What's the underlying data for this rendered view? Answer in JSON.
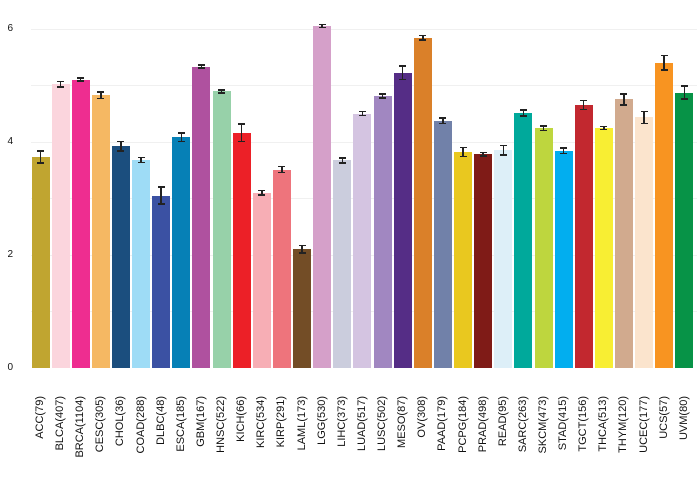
{
  "chart_data": {
    "type": "bar",
    "title": "",
    "xlabel": "",
    "ylabel": "",
    "ylim": [
      0,
      6
    ],
    "yticks": [
      0,
      2,
      4,
      6
    ],
    "y_tick_labels": [
      "0",
      "2",
      "4",
      "6"
    ],
    "gridline_values": [
      1,
      2,
      3,
      4,
      5,
      6
    ],
    "grid_on": true,
    "legend": "none",
    "grid_color": "#f0f0f0",
    "error_bar_color": "#222222",
    "background_color": "#ffffff",
    "categories": [
      "ACC(79)",
      "BLCA(407)",
      "BRCA(1104)",
      "CESC(305)",
      "CHOL(36)",
      "COAD(288)",
      "DLBC(48)",
      "ESCA(185)",
      "GBM(167)",
      "HNSC(522)",
      "KICH(66)",
      "KIRC(534)",
      "KIRP(291)",
      "LAML(173)",
      "LGG(530)",
      "LIHC(373)",
      "LUAD(517)",
      "LUSC(502)",
      "MESO(87)",
      "OV(308)",
      "PAAD(179)",
      "PCPG(184)",
      "PRAD(498)",
      "READ(95)",
      "SARC(263)",
      "SKCM(473)",
      "STAD(415)",
      "TGCT(156)",
      "THCA(513)",
      "THYM(120)",
      "UCEC(177)",
      "UCS(57)",
      "UVM(80)"
    ],
    "values": [
      3.73,
      5.02,
      5.1,
      4.82,
      3.92,
      3.68,
      3.05,
      4.08,
      5.33,
      4.89,
      4.16,
      3.1,
      3.51,
      2.1,
      6.05,
      3.67,
      4.5,
      4.81,
      5.22,
      5.84,
      4.37,
      3.82,
      3.78,
      3.85,
      4.51,
      4.24,
      3.84,
      4.65,
      4.24,
      4.75,
      4.43,
      5.4,
      4.87
    ],
    "errors": [
      0.12,
      0.06,
      0.04,
      0.07,
      0.1,
      0.06,
      0.16,
      0.09,
      0.04,
      0.04,
      0.17,
      0.05,
      0.07,
      0.08,
      0.04,
      0.06,
      0.05,
      0.05,
      0.13,
      0.05,
      0.06,
      0.09,
      0.04,
      0.1,
      0.07,
      0.05,
      0.06,
      0.09,
      0.04,
      0.11,
      0.12,
      0.14,
      0.13
    ],
    "bar_colors": [
      "#c0a530",
      "#fbd5dd",
      "#ee2d90",
      "#f5b863",
      "#1b4e7e",
      "#9edcf6",
      "#3b51a3",
      "#0680b6",
      "#af519f",
      "#97d1a9",
      "#ec2027",
      "#f7aeb5",
      "#ee747c",
      "#734d26",
      "#d5a0c9",
      "#cbcddd",
      "#d4c4e1",
      "#a187c1",
      "#552d86",
      "#da8029",
      "#7181a9",
      "#e9c81f",
      "#7f1b17",
      "#ddeff8",
      "#00a99b",
      "#bed63e",
      "#02aeef",
      "#c2282f",
      "#f8ee33",
      "#d1aa8e",
      "#fbe4cd",
      "#f89421",
      "#079347"
    ]
  }
}
